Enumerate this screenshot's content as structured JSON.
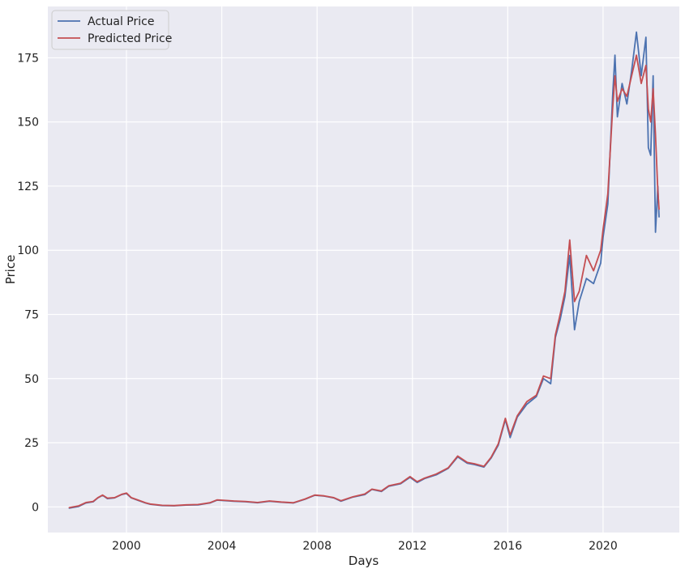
{
  "chart_data": {
    "type": "line",
    "title": "",
    "xlabel": "Days",
    "ylabel": "Price",
    "xlim": [
      1996.7,
      2023.2
    ],
    "ylim": [
      -10,
      195
    ],
    "x_ticks": [
      2000,
      2004,
      2008,
      2012,
      2016,
      2020
    ],
    "x_tick_labels": [
      "2000",
      "2004",
      "2008",
      "2012",
      "2016",
      "2020"
    ],
    "y_ticks": [
      0,
      25,
      50,
      75,
      100,
      125,
      150,
      175
    ],
    "y_tick_labels": [
      "0",
      "25",
      "50",
      "75",
      "100",
      "125",
      "150",
      "175"
    ],
    "grid": true,
    "legend_position": "top-left",
    "background": "#eaeaf2",
    "series": [
      {
        "name": "Actual Price",
        "color": "#4c72b0",
        "points": [
          [
            1997.6,
            -0.5
          ],
          [
            1998.0,
            0.2
          ],
          [
            1998.3,
            1.5
          ],
          [
            1998.6,
            2.0
          ],
          [
            1998.8,
            3.5
          ],
          [
            1999.0,
            4.5
          ],
          [
            1999.2,
            3.2
          ],
          [
            1999.5,
            3.5
          ],
          [
            1999.8,
            4.8
          ],
          [
            2000.0,
            5.2
          ],
          [
            2000.2,
            3.5
          ],
          [
            2000.5,
            2.5
          ],
          [
            2000.8,
            1.5
          ],
          [
            2001.0,
            1.0
          ],
          [
            2001.5,
            0.5
          ],
          [
            2002.0,
            0.4
          ],
          [
            2002.5,
            0.7
          ],
          [
            2003.0,
            0.8
          ],
          [
            2003.5,
            1.5
          ],
          [
            2003.8,
            2.6
          ],
          [
            2004.0,
            2.5
          ],
          [
            2004.5,
            2.2
          ],
          [
            2005.0,
            2.0
          ],
          [
            2005.5,
            1.6
          ],
          [
            2006.0,
            2.2
          ],
          [
            2006.5,
            1.8
          ],
          [
            2007.0,
            1.5
          ],
          [
            2007.5,
            3.0
          ],
          [
            2007.9,
            4.5
          ],
          [
            2008.3,
            4.2
          ],
          [
            2008.7,
            3.5
          ],
          [
            2009.0,
            2.2
          ],
          [
            2009.5,
            3.8
          ],
          [
            2010.0,
            4.8
          ],
          [
            2010.3,
            6.8
          ],
          [
            2010.7,
            6.0
          ],
          [
            2011.0,
            8.0
          ],
          [
            2011.5,
            9.0
          ],
          [
            2011.9,
            11.5
          ],
          [
            2012.2,
            9.5
          ],
          [
            2012.5,
            11.0
          ],
          [
            2013.0,
            12.5
          ],
          [
            2013.5,
            15.0
          ],
          [
            2013.9,
            19.5
          ],
          [
            2014.3,
            17.0
          ],
          [
            2014.6,
            16.5
          ],
          [
            2015.0,
            15.5
          ],
          [
            2015.3,
            19.0
          ],
          [
            2015.6,
            24.0
          ],
          [
            2015.9,
            34.0
          ],
          [
            2016.1,
            27.0
          ],
          [
            2016.4,
            35.0
          ],
          [
            2016.8,
            40.0
          ],
          [
            2017.2,
            43.0
          ],
          [
            2017.5,
            50.0
          ],
          [
            2017.8,
            48.0
          ],
          [
            2018.0,
            66.0
          ],
          [
            2018.2,
            73.0
          ],
          [
            2018.4,
            82.0
          ],
          [
            2018.6,
            98.0
          ],
          [
            2018.8,
            69.0
          ],
          [
            2019.0,
            80.0
          ],
          [
            2019.3,
            89.0
          ],
          [
            2019.6,
            87.0
          ],
          [
            2019.9,
            95.0
          ],
          [
            2020.0,
            105.0
          ],
          [
            2020.2,
            118.0
          ],
          [
            2020.4,
            160.0
          ],
          [
            2020.5,
            176.0
          ],
          [
            2020.6,
            152.0
          ],
          [
            2020.8,
            165.0
          ],
          [
            2021.0,
            157.0
          ],
          [
            2021.2,
            170.0
          ],
          [
            2021.4,
            185.0
          ],
          [
            2021.6,
            168.0
          ],
          [
            2021.8,
            183.0
          ],
          [
            2021.9,
            140.0
          ],
          [
            2022.0,
            137.0
          ],
          [
            2022.1,
            168.0
          ],
          [
            2022.2,
            107.0
          ],
          [
            2022.3,
            125.0
          ],
          [
            2022.35,
            113.0
          ]
        ]
      },
      {
        "name": "Predicted Price",
        "color": "#c44e52",
        "points": [
          [
            1997.6,
            -0.3
          ],
          [
            1998.0,
            0.4
          ],
          [
            1998.3,
            1.7
          ],
          [
            1998.6,
            2.1
          ],
          [
            1998.8,
            3.6
          ],
          [
            1999.0,
            4.6
          ],
          [
            1999.2,
            3.4
          ],
          [
            1999.5,
            3.6
          ],
          [
            1999.8,
            4.9
          ],
          [
            2000.0,
            5.4
          ],
          [
            2000.2,
            3.6
          ],
          [
            2000.5,
            2.6
          ],
          [
            2000.8,
            1.6
          ],
          [
            2001.0,
            1.1
          ],
          [
            2001.5,
            0.6
          ],
          [
            2002.0,
            0.5
          ],
          [
            2002.5,
            0.8
          ],
          [
            2003.0,
            0.9
          ],
          [
            2003.5,
            1.6
          ],
          [
            2003.8,
            2.7
          ],
          [
            2004.0,
            2.6
          ],
          [
            2004.5,
            2.3
          ],
          [
            2005.0,
            2.1
          ],
          [
            2005.5,
            1.7
          ],
          [
            2006.0,
            2.3
          ],
          [
            2006.5,
            1.9
          ],
          [
            2007.0,
            1.6
          ],
          [
            2007.5,
            3.1
          ],
          [
            2007.9,
            4.6
          ],
          [
            2008.3,
            4.3
          ],
          [
            2008.7,
            3.6
          ],
          [
            2009.0,
            2.4
          ],
          [
            2009.5,
            3.9
          ],
          [
            2010.0,
            5.0
          ],
          [
            2010.3,
            6.9
          ],
          [
            2010.7,
            6.2
          ],
          [
            2011.0,
            8.2
          ],
          [
            2011.5,
            9.2
          ],
          [
            2011.9,
            11.8
          ],
          [
            2012.2,
            9.8
          ],
          [
            2012.5,
            11.2
          ],
          [
            2013.0,
            12.8
          ],
          [
            2013.5,
            15.2
          ],
          [
            2013.9,
            19.8
          ],
          [
            2014.3,
            17.3
          ],
          [
            2014.6,
            16.8
          ],
          [
            2015.0,
            15.8
          ],
          [
            2015.3,
            19.3
          ],
          [
            2015.6,
            24.5
          ],
          [
            2015.9,
            34.5
          ],
          [
            2016.1,
            28.0
          ],
          [
            2016.4,
            35.5
          ],
          [
            2016.8,
            41.0
          ],
          [
            2017.2,
            43.5
          ],
          [
            2017.5,
            51.0
          ],
          [
            2017.8,
            50.0
          ],
          [
            2018.0,
            67.0
          ],
          [
            2018.2,
            75.0
          ],
          [
            2018.4,
            84.0
          ],
          [
            2018.6,
            104.0
          ],
          [
            2018.8,
            80.0
          ],
          [
            2019.0,
            84.0
          ],
          [
            2019.3,
            98.0
          ],
          [
            2019.6,
            92.0
          ],
          [
            2019.9,
            100.0
          ],
          [
            2020.0,
            108.0
          ],
          [
            2020.2,
            122.0
          ],
          [
            2020.4,
            155.0
          ],
          [
            2020.5,
            168.0
          ],
          [
            2020.6,
            158.0
          ],
          [
            2020.8,
            163.0
          ],
          [
            2021.0,
            160.0
          ],
          [
            2021.2,
            168.0
          ],
          [
            2021.4,
            176.0
          ],
          [
            2021.6,
            165.0
          ],
          [
            2021.8,
            172.0
          ],
          [
            2021.9,
            155.0
          ],
          [
            2022.0,
            150.0
          ],
          [
            2022.1,
            163.0
          ],
          [
            2022.2,
            145.0
          ],
          [
            2022.3,
            123.0
          ],
          [
            2022.35,
            116.0
          ]
        ]
      }
    ]
  }
}
